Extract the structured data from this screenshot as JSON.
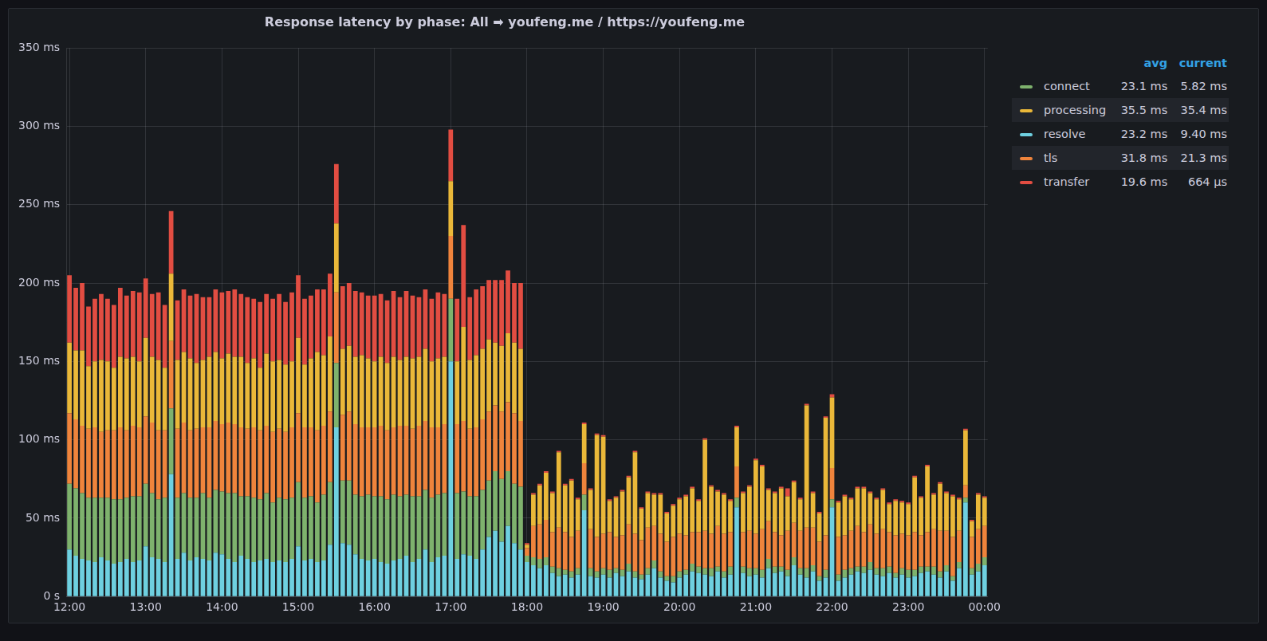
{
  "chart_data": {
    "type": "bar",
    "title": "Response latency by phase: All ➡ youfeng.me / https://youfeng.me",
    "stacked": true,
    "grid": true,
    "legend": "right",
    "legend_columns": [
      "avg",
      "current"
    ],
    "ylim": [
      0,
      350
    ],
    "yticks": [
      {
        "value": 0,
        "label": "0 s"
      },
      {
        "value": 50,
        "label": "50 ms"
      },
      {
        "value": 100,
        "label": "100 ms"
      },
      {
        "value": 150,
        "label": "150 ms"
      },
      {
        "value": 200,
        "label": "200 ms"
      },
      {
        "value": 250,
        "label": "250 ms"
      },
      {
        "value": 300,
        "label": "300 ms"
      },
      {
        "value": 350,
        "label": "350 ms"
      }
    ],
    "categories": [
      "12:00",
      null,
      null,
      null,
      null,
      null,
      null,
      null,
      null,
      null,
      null,
      null,
      "13:00",
      null,
      null,
      null,
      null,
      null,
      null,
      null,
      null,
      null,
      null,
      null,
      "14:00",
      null,
      null,
      null,
      null,
      null,
      null,
      null,
      null,
      null,
      null,
      null,
      "15:00",
      null,
      null,
      null,
      null,
      null,
      null,
      null,
      null,
      null,
      null,
      null,
      "16:00",
      null,
      null,
      null,
      null,
      null,
      null,
      null,
      null,
      null,
      null,
      null,
      "17:00",
      null,
      null,
      null,
      null,
      null,
      null,
      null,
      null,
      null,
      null,
      null,
      "18:00",
      null,
      null,
      null,
      null,
      null,
      null,
      null,
      null,
      null,
      null,
      null,
      "19:00",
      null,
      null,
      null,
      null,
      null,
      null,
      null,
      null,
      null,
      null,
      null,
      "20:00",
      null,
      null,
      null,
      null,
      null,
      null,
      null,
      null,
      null,
      null,
      null,
      "21:00",
      null,
      null,
      null,
      null,
      null,
      null,
      null,
      null,
      null,
      null,
      null,
      "22:00",
      null,
      null,
      null,
      null,
      null,
      null,
      null,
      null,
      null,
      null,
      null,
      "23:00",
      null,
      null,
      null,
      null,
      null,
      null,
      null,
      null,
      null,
      null,
      null,
      "00:00"
    ],
    "series": [
      {
        "name": "resolve",
        "color": "#6ed0e0",
        "avg": "23.2 ms",
        "current": "9.40 ms",
        "values": [
          30,
          26,
          24,
          23,
          22,
          25,
          23,
          21,
          22,
          24,
          22,
          23,
          32,
          25,
          24,
          22,
          78,
          24,
          28,
          23,
          25,
          24,
          23,
          28,
          27,
          24,
          22,
          26,
          24,
          22,
          23,
          24,
          22,
          23,
          22,
          24,
          32,
          23,
          24,
          22,
          23,
          33,
          108,
          34,
          33,
          27,
          24,
          23,
          24,
          22,
          21,
          23,
          24,
          26,
          22,
          24,
          30,
          22,
          25,
          26,
          150,
          24,
          27,
          26,
          24,
          30,
          38,
          42,
          35,
          45,
          34,
          30,
          22,
          20,
          18,
          20,
          15,
          13,
          14,
          12,
          14,
          55,
          13,
          12,
          14,
          12,
          15,
          13,
          16,
          12,
          11,
          14,
          18,
          12,
          10,
          9,
          12,
          14,
          16,
          15,
          14,
          13,
          16,
          12,
          14,
          57,
          15,
          13,
          14,
          12,
          18,
          15,
          16,
          13,
          20,
          14,
          12,
          16,
          10,
          12,
          57,
          10,
          12,
          14,
          16,
          15,
          17,
          14,
          13,
          15,
          12,
          14,
          12,
          13,
          15,
          16,
          14,
          12,
          16,
          10,
          18,
          60,
          14,
          16,
          20
        ]
      },
      {
        "name": "connect",
        "color": "#7eb26d",
        "avg": "23.1 ms",
        "current": "5.82 ms",
        "values": [
          42,
          43,
          42,
          40,
          41,
          38,
          40,
          41,
          40,
          39,
          42,
          41,
          40,
          41,
          38,
          41,
          42,
          39,
          38,
          40,
          38,
          42,
          40,
          40,
          40,
          42,
          44,
          38,
          40,
          41,
          39,
          42,
          38,
          40,
          40,
          39,
          41,
          40,
          40,
          38,
          42,
          40,
          41,
          40,
          41,
          38,
          40,
          42,
          40,
          42,
          41,
          42,
          40,
          39,
          42,
          40,
          38,
          41,
          40,
          40,
          40,
          42,
          40,
          38,
          40,
          38,
          36,
          38,
          40,
          35,
          38,
          40,
          4,
          5,
          6,
          5,
          4,
          5,
          3,
          4,
          4,
          10,
          5,
          4,
          4,
          5,
          3,
          4,
          5,
          4,
          3,
          4,
          5,
          4,
          3,
          4,
          4,
          3,
          5,
          4,
          4,
          5,
          3,
          4,
          5,
          6,
          4,
          5,
          4,
          5,
          6,
          4,
          3,
          4,
          5,
          4,
          6,
          4,
          3,
          5,
          5,
          4,
          5,
          4,
          3,
          4,
          5,
          4,
          5,
          4,
          3,
          4,
          5,
          4,
          4,
          3,
          5,
          4,
          4,
          3,
          4,
          3,
          4,
          5,
          5
        ]
      },
      {
        "name": "tls",
        "color": "#ef843c",
        "avg": "31.8 ms",
        "current": "21.3 ms",
        "values": [
          45,
          44,
          43,
          44,
          45,
          42,
          43,
          44,
          46,
          43,
          45,
          44,
          43,
          45,
          44,
          43,
          43,
          44,
          45,
          43,
          44,
          42,
          45,
          44,
          43,
          45,
          44,
          44,
          43,
          45,
          44,
          43,
          45,
          44,
          43,
          45,
          44,
          45,
          44,
          46,
          44,
          45,
          45,
          42,
          44,
          45,
          44,
          43,
          44,
          45,
          44,
          43,
          45,
          44,
          43,
          45,
          44,
          45,
          43,
          44,
          40,
          44,
          45,
          43,
          44,
          45,
          44,
          42,
          43,
          44,
          45,
          42,
          5,
          20,
          22,
          24,
          22,
          26,
          24,
          22,
          24,
          20,
          25,
          22,
          22,
          24,
          20,
          22,
          25,
          24,
          22,
          26,
          22,
          24,
          22,
          25,
          24,
          22,
          20,
          22,
          24,
          22,
          26,
          24,
          22,
          20,
          22,
          24,
          22,
          26,
          24,
          22,
          20,
          25,
          22,
          24,
          26,
          24,
          22,
          22,
          20,
          24,
          22,
          24,
          26,
          22,
          24,
          22,
          25,
          22,
          24,
          22,
          22,
          24,
          20,
          22,
          24,
          26,
          22,
          25,
          20,
          8,
          20,
          22,
          20
        ]
      },
      {
        "name": "processing",
        "color": "#eab839",
        "avg": "35.5 ms",
        "current": "35.4 ms",
        "values": [
          45,
          44,
          48,
          40,
          42,
          46,
          44,
          40,
          45,
          46,
          44,
          42,
          50,
          42,
          45,
          40,
          43,
          44,
          45,
          46,
          42,
          43,
          45,
          44,
          42,
          44,
          43,
          45,
          42,
          44,
          40,
          46,
          45,
          44,
          43,
          42,
          48,
          40,
          44,
          50,
          45,
          48,
          44,
          42,
          42,
          43,
          46,
          44,
          42,
          44,
          43,
          45,
          42,
          44,
          45,
          44,
          46,
          42,
          44,
          43,
          35,
          40,
          60,
          44,
          46,
          45,
          46,
          40,
          42,
          44,
          45,
          46,
          2,
          20,
          25,
          30,
          25,
          48,
          30,
          36,
          20,
          25,
          25,
          65,
          62,
          20,
          25,
          28,
          30,
          52,
          20,
          22,
          20,
          25,
          18,
          20,
          22,
          25,
          28,
          20,
          58,
          30,
          22,
          25,
          20,
          25,
          25,
          28,
          47,
          40,
          20,
          25,
          30,
          22,
          26,
          20,
          78,
          22,
          18,
          75,
          45,
          22,
          25,
          20,
          24,
          28,
          20,
          22,
          25,
          18,
          22,
          20,
          20,
          35,
          24,
          42,
          22,
          30,
          24,
          26,
          20,
          35,
          10,
          22,
          18
        ]
      },
      {
        "name": "transfer",
        "color": "#e24d42",
        "avg": "19.6 ms",
        "current": "664 µs",
        "values": [
          43,
          40,
          43,
          38,
          40,
          42,
          40,
          40,
          44,
          40,
          42,
          44,
          38,
          40,
          43,
          40,
          40,
          38,
          40,
          40,
          44,
          40,
          38,
          40,
          42,
          40,
          43,
          40,
          42,
          38,
          42,
          38,
          40,
          42,
          40,
          44,
          40,
          42,
          40,
          40,
          42,
          40,
          38,
          40,
          40,
          42,
          40,
          40,
          42,
          40,
          40,
          42,
          40,
          42,
          40,
          38,
          38,
          40,
          42,
          40,
          33,
          40,
          65,
          40,
          42,
          40,
          38,
          40,
          42,
          40,
          38,
          42,
          1,
          1,
          1,
          1,
          1,
          1,
          1,
          1,
          1,
          1,
          1,
          1,
          1,
          1,
          1,
          1,
          1,
          1,
          1,
          1,
          1,
          1,
          1,
          1,
          1,
          1,
          1,
          1,
          1,
          1,
          1,
          1,
          1,
          1,
          1,
          1,
          1,
          1,
          1,
          1,
          1,
          5,
          1,
          1,
          1,
          1,
          1,
          1,
          2,
          1,
          1,
          1,
          1,
          1,
          1,
          1,
          1,
          1,
          1,
          1,
          1,
          1,
          1,
          1,
          1,
          1,
          1,
          1,
          1,
          1,
          1,
          1,
          1
        ]
      }
    ]
  }
}
